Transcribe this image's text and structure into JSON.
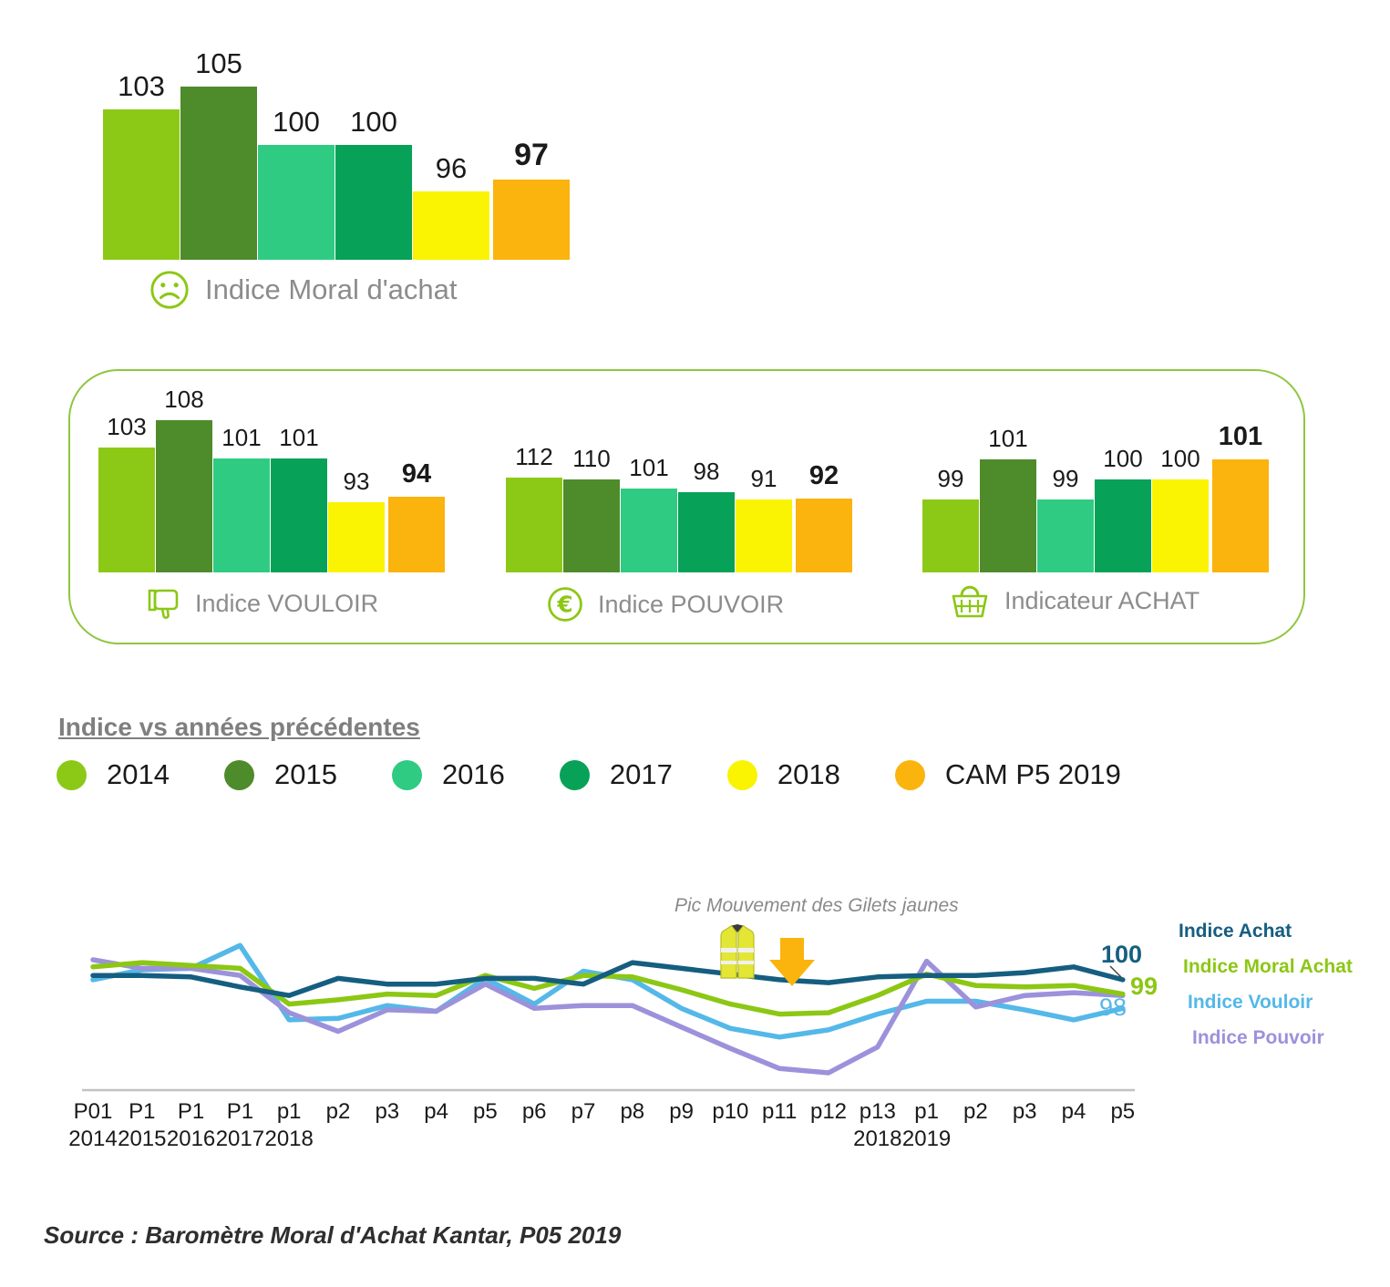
{
  "palette_note": "shared year palette lives in legend.items colors",
  "chart_data": [
    {
      "id": "moral",
      "type": "bar",
      "title": "Indice Moral d'achat",
      "icon": "sad-face-icon",
      "categories": [
        "2014",
        "2015",
        "2016",
        "2017",
        "2018",
        "CAM P5 2019"
      ],
      "values": [
        103,
        105,
        100,
        100,
        96,
        97
      ],
      "bold_last": true
    },
    {
      "id": "vouloir",
      "type": "bar",
      "title": "Indice VOULOIR",
      "icon": "thumb-down-icon",
      "categories": [
        "2014",
        "2015",
        "2016",
        "2017",
        "2018",
        "CAM P5 2019"
      ],
      "values": [
        103,
        108,
        101,
        101,
        93,
        94
      ],
      "bold_last": true
    },
    {
      "id": "pouvoir",
      "type": "bar",
      "title": "Indice POUVOIR",
      "icon": "euro-icon",
      "categories": [
        "2014",
        "2015",
        "2016",
        "2017",
        "2018",
        "CAM P5 2019"
      ],
      "values": [
        112,
        110,
        101,
        98,
        91,
        92
      ],
      "bold_last": true
    },
    {
      "id": "achat",
      "type": "bar",
      "title": "Indicateur ACHAT",
      "icon": "basket-icon",
      "categories": [
        "2014",
        "2015",
        "2016",
        "2017",
        "2018",
        "CAM P5 2019"
      ],
      "values": [
        99,
        101,
        99,
        100,
        100,
        101
      ],
      "bold_last": true
    },
    {
      "id": "evolution",
      "type": "line",
      "x": [
        {
          "p": "P01",
          "year": "2014"
        },
        {
          "p": "P1",
          "year": "2015"
        },
        {
          "p": "P1",
          "year": "2016"
        },
        {
          "p": "P1",
          "year": "2017"
        },
        {
          "p": "p1",
          "year": "2018"
        },
        {
          "p": "p2"
        },
        {
          "p": "p3"
        },
        {
          "p": "p4"
        },
        {
          "p": "p5"
        },
        {
          "p": "p6"
        },
        {
          "p": "p7"
        },
        {
          "p": "p8"
        },
        {
          "p": "p9"
        },
        {
          "p": "p10"
        },
        {
          "p": "p11"
        },
        {
          "p": "p12"
        },
        {
          "p": "p13",
          "year": "2018"
        },
        {
          "p": "p1",
          "year": "2019"
        },
        {
          "p": "p2"
        },
        {
          "p": "p3"
        },
        {
          "p": "p4"
        },
        {
          "p": "p5"
        }
      ],
      "series": [
        {
          "name": "Indice Achat",
          "color": "#155E80",
          "end_label": "100",
          "values": [
            100.3,
            100.3,
            100.2,
            99.5,
            98.9,
            100.1,
            99.7,
            99.7,
            100.1,
            100.1,
            99.7,
            101.2,
            100.8,
            100.4,
            100.0,
            99.8,
            100.2,
            100.3,
            100.3,
            100.5,
            100.9,
            100.0
          ]
        },
        {
          "name": "Indice Moral Achat",
          "color": "#8CC714",
          "end_label": "99",
          "values": [
            100.9,
            101.2,
            101.0,
            100.8,
            98.3,
            98.6,
            99.0,
            98.9,
            100.3,
            99.4,
            100.3,
            100.2,
            99.3,
            98.3,
            97.6,
            97.7,
            98.9,
            100.4,
            99.6,
            99.5,
            99.6,
            99.0
          ]
        },
        {
          "name": "Indice Vouloir",
          "color": "#54B8E8",
          "end_label": "98",
          "values": [
            100.0,
            100.7,
            100.8,
            102.4,
            97.2,
            97.3,
            98.2,
            97.8,
            100.1,
            98.3,
            100.6,
            100.0,
            98.0,
            96.6,
            96.0,
            96.5,
            97.6,
            98.5,
            98.5,
            97.9,
            97.2,
            98.0
          ]
        },
        {
          "name": "Indice Pouvoir",
          "color": "#9C92DB",
          "values": [
            101.4,
            100.8,
            100.8,
            100.3,
            97.7,
            96.4,
            97.9,
            97.8,
            99.7,
            98.0,
            98.2,
            98.2,
            96.7,
            95.2,
            93.8,
            93.5,
            95.3,
            101.3,
            98.1,
            98.9,
            99.1,
            98.9
          ]
        }
      ],
      "annotation": {
        "text": "Pic Mouvement des Gilets jaunes",
        "icons": [
          "yellow-vest-icon",
          "down-arrow-icon"
        ]
      },
      "ylim": [
        93,
        103.5
      ],
      "grid": false,
      "legend_position": "right"
    }
  ],
  "legend": {
    "title": "Indice vs années précédentes",
    "items": [
      {
        "label": "2014",
        "color": "#8CC917"
      },
      {
        "label": "2015",
        "color": "#4E8B2B"
      },
      {
        "label": "2016",
        "color": "#2FCB82"
      },
      {
        "label": "2017",
        "color": "#07A157"
      },
      {
        "label": "2018",
        "color": "#FAF302"
      },
      {
        "label": "CAM P5 2019",
        "color": "#FAB40D"
      }
    ]
  },
  "colors": {
    "axis": "#C2C2C2",
    "caption": "#8C8C8C",
    "box_border": "#8FC640",
    "arrow": "#FAB40D"
  },
  "source": "Source : Baromètre Moral d'Achat Kantar, P05 2019"
}
